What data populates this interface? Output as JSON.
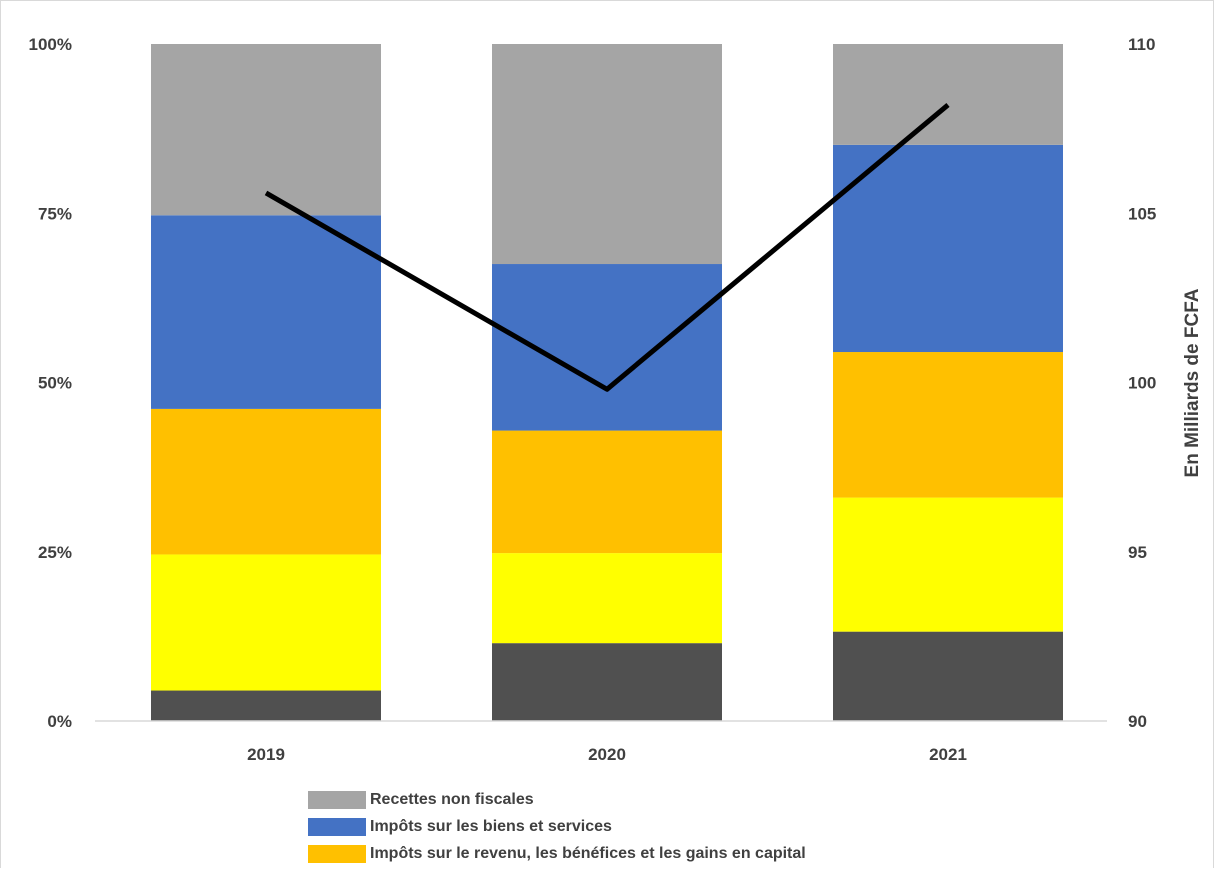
{
  "chart_data": {
    "type": "bar",
    "stacked": true,
    "normalized_percent": true,
    "categories": [
      "2019",
      "2020",
      "2021"
    ],
    "series": [
      {
        "name": "",
        "color": "#505050",
        "values": [
          4.5,
          11.5,
          13.2
        ]
      },
      {
        "name": "",
        "color": "#FFFF00",
        "values": [
          20.1,
          13.3,
          19.8
        ]
      },
      {
        "name": "Impôts sur le revenu, les bénéfices et les gains en capital",
        "color": "#FFC000",
        "values": [
          21.5,
          18.1,
          21.5
        ]
      },
      {
        "name": "Impôts sur les biens et services",
        "color": "#4472C4",
        "values": [
          28.6,
          24.6,
          30.6
        ]
      },
      {
        "name": "Recettes non fiscales",
        "color": "#A5A5A5",
        "values": [
          25.3,
          32.5,
          14.9
        ]
      }
    ],
    "line_series": {
      "name": "",
      "color": "#000000",
      "axis": "right",
      "values": [
        105.6,
        99.8,
        108.2
      ]
    },
    "y_left": {
      "ticks": [
        "0%",
        "25%",
        "50%",
        "75%",
        "100%"
      ],
      "ylim": [
        0,
        100
      ]
    },
    "y_right": {
      "label": "En Milliards de FCFA",
      "ticks": [
        "90",
        "95",
        "100",
        "105",
        "110"
      ],
      "ylim": [
        90,
        110
      ]
    },
    "legend_position": "bottom-left",
    "grid": false
  },
  "legend_entries": [
    {
      "label": "Recettes non fiscales",
      "color": "#A5A5A5"
    },
    {
      "label": "Impôts sur les biens et services",
      "color": "#4472C4"
    },
    {
      "label": "Impôts sur le revenu, les bénéfices et les gains en capital",
      "color": "#FFC000"
    }
  ]
}
